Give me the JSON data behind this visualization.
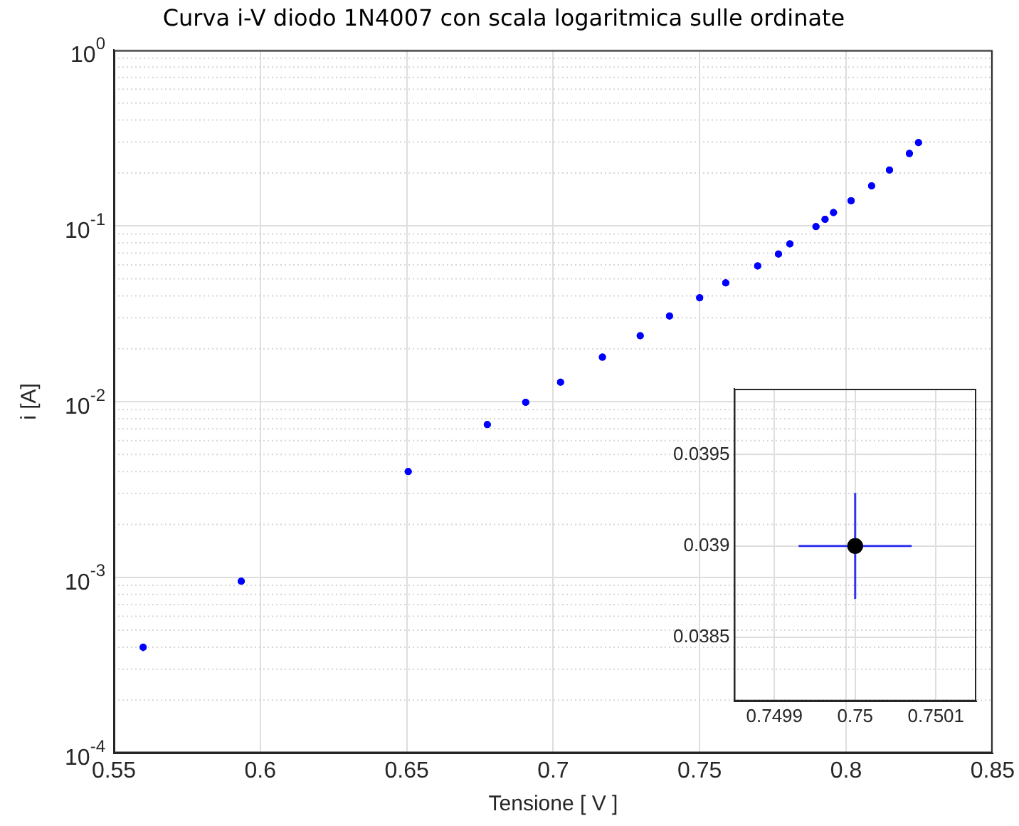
{
  "chart_data": [
    {
      "type": "scatter",
      "title": "Curva i-V diodo 1N4007 con scala logaritmica sulle ordinate",
      "xlabel": "Tensione [ V ]",
      "ylabel": "i [A]",
      "log": "y",
      "grid": true,
      "marker": "circle",
      "x": [
        0.56,
        0.5935,
        0.6505,
        0.6775,
        0.6906,
        0.7025,
        0.7168,
        0.7297,
        0.7397,
        0.75,
        0.7589,
        0.7698,
        0.7769,
        0.7808,
        0.7897,
        0.7928,
        0.7957,
        0.8017,
        0.8087,
        0.8148,
        0.8216,
        0.8247
      ],
      "series": [
        {
          "color": "#0000ff",
          "values": [
            0.0004,
            0.00095,
            0.004,
            0.0074,
            0.0099,
            0.0129,
            0.0179,
            0.0237,
            0.0307,
            0.039,
            0.0474,
            0.0592,
            0.0692,
            0.079,
            0.099,
            0.109,
            0.119,
            0.139,
            0.169,
            0.208,
            0.258,
            0.298
          ],
          "errors": [
            2e-05,
            null,
            null,
            null,
            null,
            null,
            null,
            null,
            null,
            null,
            null,
            null,
            null,
            null,
            null,
            null,
            null,
            null,
            null,
            null,
            null,
            null
          ]
        }
      ],
      "xlim": [
        0.55,
        0.85
      ],
      "xticks": [
        0.55,
        0.6,
        0.65,
        0.7,
        0.75,
        0.8,
        0.85
      ],
      "ylim": [
        0.0001,
        1
      ],
      "yticks": [
        {
          "value": 0.0001,
          "label": "10$^{-4}$"
        },
        {
          "value": 0.001,
          "label": "10$^{-3}$"
        },
        {
          "value": 0.01,
          "label": "10$^{-2}$"
        },
        {
          "value": 0.1,
          "label": "10$^{-1}$"
        },
        {
          "value": 1,
          "label": "10$^{0}$"
        }
      ]
    },
    {
      "type": "scatter",
      "grid": true,
      "marker": "circle",
      "x": [
        0.75
      ],
      "series": [
        {
          "color": "#000000",
          "values": [
            0.039
          ],
          "errors": [
            0.00029
          ],
          "xerrors": [
            7e-05
          ]
        }
      ],
      "xlim": [
        0.74985,
        0.75015
      ],
      "xticks": [
        0.7499,
        0.75,
        0.7501
      ],
      "ylim": [
        0.03815,
        0.03986
      ],
      "yticks": [
        0.0385,
        0.039,
        0.0395
      ]
    }
  ]
}
